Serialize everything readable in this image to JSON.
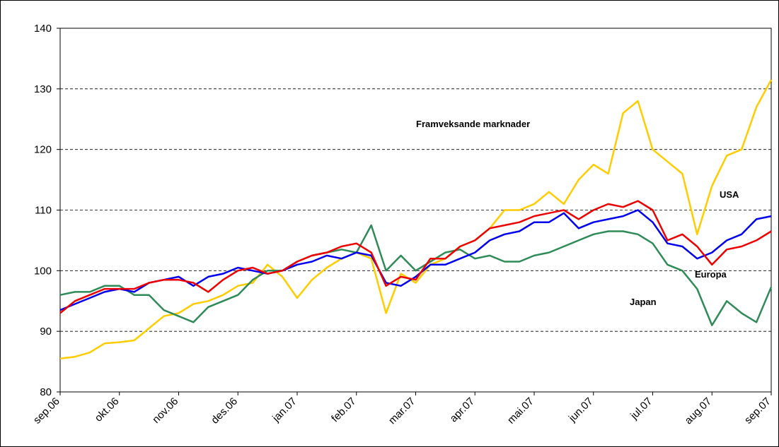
{
  "chart_data": {
    "type": "line",
    "categories": [
      "sep.06",
      null,
      null,
      null,
      "okt.06",
      null,
      null,
      null,
      "nov.06",
      null,
      null,
      null,
      "des.06",
      null,
      null,
      null,
      "jan.07",
      null,
      null,
      null,
      "feb.07",
      null,
      null,
      null,
      "mar.07",
      null,
      null,
      null,
      "apr.07",
      null,
      null,
      null,
      "mai.07",
      null,
      null,
      null,
      "jun.07",
      null,
      null,
      null,
      "jul.07",
      null,
      null,
      null,
      "aug.07",
      null,
      null,
      null,
      "sep.07"
    ],
    "series": [
      {
        "name": "Framveksande marknader",
        "color": "#ffcc00",
        "values": [
          85.5,
          85.8,
          86.5,
          88,
          88.2,
          88.5,
          90.5,
          92.5,
          93,
          94.5,
          95,
          96,
          97.5,
          98,
          101,
          99,
          95.5,
          98.5,
          100.5,
          102,
          103,
          102,
          93,
          99.5,
          98,
          101,
          102,
          104,
          105,
          107,
          110,
          110,
          111,
          113,
          111,
          115,
          117.5,
          116,
          126,
          128,
          120,
          118,
          116,
          106,
          114,
          119,
          120,
          127,
          131.5
        ]
      },
      {
        "name": "USA",
        "color": "#0000ee",
        "values": [
          93.5,
          94.5,
          95.5,
          96.5,
          97,
          96.5,
          98,
          98.5,
          99,
          97.5,
          99,
          99.5,
          100.5,
          100,
          99.5,
          100,
          101,
          101.5,
          102.5,
          102,
          103,
          102.5,
          98,
          97.5,
          99,
          101,
          101,
          102,
          103,
          105,
          106,
          106.5,
          108,
          108,
          109.5,
          107,
          108,
          108.5,
          109,
          110,
          108,
          104.5,
          104,
          102,
          103,
          105,
          106,
          108.5,
          109
        ]
      },
      {
        "name": "Europa",
        "color": "#ee0000",
        "values": [
          93,
          95,
          96,
          97,
          97,
          97,
          98,
          98.5,
          98.5,
          98,
          96.5,
          98.5,
          100,
          100.5,
          99.5,
          100,
          101.5,
          102.5,
          103,
          104,
          104.5,
          103,
          97.5,
          99,
          98.5,
          102,
          102,
          104,
          105,
          107,
          107.5,
          108,
          109,
          109.5,
          110,
          108.5,
          110,
          111,
          110.5,
          111.5,
          110,
          105,
          106,
          104,
          101,
          103.5,
          104,
          105,
          106.5
        ]
      },
      {
        "name": "Japan",
        "color": "#2e8b57",
        "values": [
          96,
          96.5,
          96.5,
          97.5,
          97.5,
          96,
          96,
          93.5,
          92.5,
          91.5,
          94,
          95,
          96,
          98.5,
          100,
          100,
          101.5,
          102.5,
          103,
          103.5,
          103,
          107.5,
          100,
          102.5,
          100,
          101.5,
          103,
          103.5,
          102,
          102.5,
          101.5,
          101.5,
          102.5,
          103,
          104,
          105,
          106,
          106.5,
          106.5,
          106,
          104.5,
          101,
          100,
          97,
          91,
          95,
          93,
          91.5,
          97.3
        ]
      }
    ],
    "ylim": [
      80,
      140
    ],
    "yticks": [
      80,
      90,
      100,
      110,
      120,
      130,
      140
    ],
    "grid": true
  }
}
